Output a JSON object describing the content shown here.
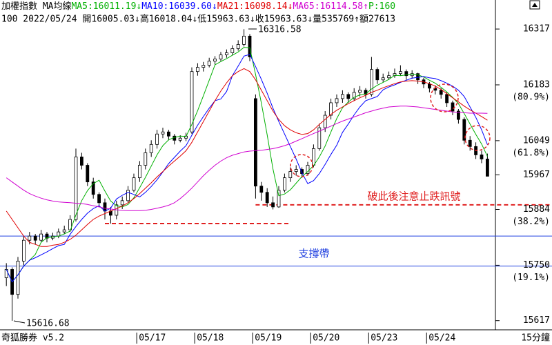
{
  "chart_data": {
    "type": "candlestick",
    "title": "加權指數 MA均線",
    "p_label": {
      "text": "P:160",
      "color": "#00b000"
    },
    "info": "100 2022/05/24 開16005.03↓高16018.04↓低15963.63↓收15963.63↓量535769↑額27613",
    "brand": "奇狐勝券 v5.2",
    "period": "15分鐘",
    "categories": [
      null,
      null,
      null,
      null,
      null,
      null,
      null,
      null,
      null,
      null,
      null,
      null,
      null,
      null,
      null,
      null,
      null,
      null,
      null,
      null,
      null,
      null,
      null,
      "05/17",
      null,
      null,
      null,
      null,
      null,
      null,
      null,
      null,
      null,
      "05/18",
      null,
      null,
      null,
      null,
      null,
      null,
      null,
      null,
      null,
      "05/19",
      null,
      null,
      null,
      null,
      null,
      null,
      null,
      null,
      null,
      "05/20",
      null,
      null,
      null,
      null,
      null,
      null,
      null,
      null,
      null,
      "05/23",
      null,
      null,
      null,
      null,
      null,
      null,
      null,
      null,
      null,
      "05/24",
      null,
      null,
      null,
      null,
      null,
      null,
      null,
      null,
      null,
      null
    ],
    "ohlc": [
      [
        15720,
        15755,
        15700,
        15740
      ],
      [
        15740,
        15745,
        15616.68,
        15680
      ],
      [
        15680,
        15770,
        15670,
        15760
      ],
      [
        15760,
        15820,
        15750,
        15810
      ],
      [
        15810,
        15830,
        15800,
        15820
      ],
      [
        15820,
        15825,
        15800,
        15810
      ],
      [
        15810,
        15835,
        15805,
        15825
      ],
      [
        15825,
        15830,
        15805,
        15815
      ],
      [
        15815,
        15828,
        15810,
        15820
      ],
      [
        15820,
        15838,
        15815,
        15830
      ],
      [
        15830,
        15845,
        15825,
        15835
      ],
      [
        15835,
        15870,
        15830,
        15860
      ],
      [
        15860,
        16030,
        15855,
        16010
      ],
      [
        16010,
        16020,
        15980,
        15990
      ],
      [
        15990,
        15995,
        15940,
        15950
      ],
      [
        15950,
        15960,
        15910,
        15920
      ],
      [
        15920,
        15925,
        15890,
        15900
      ],
      [
        15900,
        15910,
        15860,
        15880
      ],
      [
        15880,
        15890,
        15850,
        15870
      ],
      [
        15870,
        15905,
        15860,
        15895
      ],
      [
        15895,
        15915,
        15885,
        15905
      ],
      [
        15905,
        15940,
        15900,
        15930
      ],
      [
        15930,
        15970,
        15925,
        15960
      ],
      [
        15960,
        16000,
        15950,
        15990
      ],
      [
        15990,
        16030,
        15980,
        16020
      ],
      [
        16020,
        16050,
        16010,
        16040
      ],
      [
        16040,
        16075,
        16030,
        16065
      ],
      [
        16065,
        16080,
        16055,
        16070
      ],
      [
        16070,
        16075,
        16050,
        16060
      ],
      [
        16060,
        16065,
        16040,
        16050
      ],
      [
        16050,
        16062,
        16045,
        16055
      ],
      [
        16055,
        16068,
        16048,
        16060
      ],
      [
        16070,
        16225,
        16065,
        16215
      ],
      [
        16215,
        16235,
        16205,
        16225
      ],
      [
        16225,
        16238,
        16215,
        16230
      ],
      [
        16230,
        16248,
        16225,
        16240
      ],
      [
        16240,
        16252,
        16232,
        16245
      ],
      [
        16245,
        16262,
        16240,
        16255
      ],
      [
        16255,
        16268,
        16248,
        16260
      ],
      [
        16260,
        16278,
        16255,
        16270
      ],
      [
        16270,
        16290,
        16265,
        16280
      ],
      [
        16280,
        16316.58,
        16275,
        16300
      ],
      [
        16300,
        16305,
        16240,
        16250
      ],
      [
        16150,
        16160,
        15910,
        15940
      ],
      [
        15940,
        15950,
        15905,
        15925
      ],
      [
        15925,
        15935,
        15890,
        15900
      ],
      [
        15900,
        15915,
        15884,
        15890
      ],
      [
        15890,
        15940,
        15888,
        15930
      ],
      [
        15930,
        15970,
        15925,
        15960
      ],
      [
        15960,
        15985,
        15950,
        15975
      ],
      [
        15975,
        15990,
        15965,
        15980
      ],
      [
        15980,
        15985,
        15960,
        15970
      ],
      [
        15970,
        15998,
        15965,
        15990
      ],
      [
        15990,
        16040,
        15985,
        16030
      ],
      [
        16030,
        16090,
        16025,
        16080
      ],
      [
        16080,
        16120,
        16070,
        16110
      ],
      [
        16110,
        16150,
        16100,
        16140
      ],
      [
        16140,
        16160,
        16130,
        16150
      ],
      [
        16150,
        16170,
        16140,
        16160
      ],
      [
        16160,
        16165,
        16140,
        16150
      ],
      [
        16150,
        16175,
        16145,
        16165
      ],
      [
        16165,
        16180,
        16155,
        16170
      ],
      [
        16170,
        16175,
        16150,
        16160
      ],
      [
        16160,
        16250,
        16155,
        16220
      ],
      [
        16220,
        16225,
        16185,
        16195
      ],
      [
        16195,
        16210,
        16190,
        16200
      ],
      [
        16200,
        16215,
        16195,
        16205
      ],
      [
        16205,
        16222,
        16200,
        16210
      ],
      [
        16210,
        16230,
        16205,
        16215
      ],
      [
        16215,
        16220,
        16195,
        16205
      ],
      [
        16205,
        16218,
        16198,
        16210
      ],
      [
        16210,
        16212,
        16185,
        16195
      ],
      [
        16195,
        16200,
        16175,
        16185
      ],
      [
        16185,
        16190,
        16165,
        16175
      ],
      [
        16175,
        16182,
        16160,
        16170
      ],
      [
        16170,
        16175,
        16150,
        16160
      ],
      [
        16160,
        16165,
        16130,
        16140
      ],
      [
        16140,
        16145,
        16110,
        16120
      ],
      [
        16120,
        16125,
        16090,
        16100
      ],
      [
        16100,
        16105,
        16040,
        16050
      ],
      [
        16050,
        16060,
        16025,
        16035
      ],
      [
        16035,
        16045,
        16005,
        16015
      ],
      [
        16015,
        16025,
        15995,
        16005
      ],
      [
        16005.03,
        16018.04,
        15963.63,
        15963.63
      ]
    ],
    "series": [
      {
        "label": "MA5:16011.19↓",
        "color": "#00b000",
        "values": [
          15740,
          15710,
          15727,
          15748,
          15762,
          15776,
          15805,
          15816,
          15818,
          15820,
          15825,
          15832,
          15871,
          15905,
          15929,
          15946,
          15954,
          15928,
          15904,
          15893,
          15890,
          15896,
          15912,
          15936,
          15961,
          15988,
          16015,
          16037,
          16051,
          16057,
          16060,
          16059,
          16088,
          16121,
          16157,
          16194,
          16231,
          16239,
          16246,
          16254,
          16262,
          16273,
          16272,
          16208,
          16139,
          16063,
          15981,
          15917,
          15921,
          15931,
          15947,
          15963,
          15975,
          15989,
          16010,
          16036,
          16070,
          16102,
          16128,
          16142,
          16153,
          16159,
          16161,
          16173,
          16182,
          16189,
          16196,
          16206,
          16205,
          16207,
          16209,
          16207,
          16202,
          16194,
          16187,
          16177,
          16166,
          16153,
          16138,
          16114,
          16089,
          16064,
          16041,
          16011.19
        ]
      },
      {
        "label": "MA10:16039.60↓",
        "color": "#0000ff",
        "values": [
          15740,
          15710,
          15727,
          15748,
          15762,
          15768,
          15775,
          15782,
          15790,
          15797,
          15800,
          15824,
          15843,
          15860,
          15875,
          15886,
          15893,
          15880,
          15887,
          15909,
          15918,
          15925,
          15920,
          15914,
          15925,
          15939,
          15955,
          15974,
          15994,
          16009,
          16024,
          16037,
          16062,
          16086,
          16107,
          16127,
          16145,
          16149,
          16167,
          16205,
          16228,
          16252,
          16256,
          16227,
          16196,
          16163,
          16127,
          16095,
          16065,
          16035,
          16005,
          15972,
          15946,
          15953,
          15970,
          15992,
          16016,
          16038,
          16069,
          16089,
          16111,
          16130,
          16145,
          16150,
          16155,
          16171,
          16178,
          16183,
          16189,
          16194,
          16199,
          16201,
          16203,
          16200,
          16198,
          16193,
          16187,
          16180,
          16170,
          16155,
          16130,
          16105,
          16075,
          16039.6
        ]
      },
      {
        "label": "MA21:16098.14↓",
        "color": "#e00000",
        "values": [
          15880,
          15860,
          15840,
          15820,
          15805,
          15800,
          15795,
          15795,
          15798,
          15800,
          15805,
          15812,
          15822,
          15835,
          15848,
          15860,
          15868,
          15874,
          15880,
          15886,
          15892,
          15900,
          15910,
          15922,
          15935,
          15948,
          15962,
          15975,
          15988,
          16000,
          16012,
          16025,
          16045,
          16070,
          16095,
          16120,
          16145,
          16168,
          16188,
          16205,
          16215,
          16222,
          16215,
          16195,
          16170,
          16145,
          16120,
          16100,
          16085,
          16075,
          16068,
          16064,
          16066,
          16075,
          16088,
          16100,
          16112,
          16122,
          16130,
          16138,
          16145,
          16152,
          16158,
          16165,
          16170,
          16176,
          16181,
          16186,
          16190,
          16192,
          16193,
          16192,
          16190,
          16186,
          16180,
          16172,
          16162,
          16152,
          16142,
          16132,
          16123,
          16115,
          16107,
          16098.14
        ]
      },
      {
        "label": "MA65:16114.58↑",
        "color": "#d000d0",
        "values": [
          15960,
          15950,
          15940,
          15930,
          15922,
          15916,
          15911,
          15907,
          15904,
          15902,
          15901,
          15900,
          15899,
          15898,
          15896,
          15893,
          15890,
          15887,
          15885,
          15883,
          15882,
          15881,
          15881,
          15881,
          15882,
          15884,
          15887,
          15890,
          15894,
          15900,
          15910,
          15922,
          15935,
          15950,
          15965,
          15978,
          15990,
          16000,
          16008,
          16014,
          16018,
          16022,
          16024,
          16025,
          16026,
          16028,
          16030,
          16033,
          16037,
          16042,
          16048,
          16054,
          16060,
          16066,
          16072,
          16078,
          16084,
          16090,
          16096,
          16101,
          16106,
          16111,
          16116,
          16120,
          16124,
          16127,
          16130,
          16131,
          16132,
          16132,
          16131,
          16130,
          16128,
          16126,
          16124,
          16122,
          16120,
          16118,
          16117,
          16116,
          16115,
          16115,
          16115,
          16114.58
        ]
      }
    ],
    "ylim": [
      15595,
      16337
    ],
    "yticks": [
      16317,
      16183,
      16049,
      15967,
      15884,
      15750,
      15617
    ],
    "fib_labels": [
      {
        "value": 16183,
        "label": "(80.9%)"
      },
      {
        "value": 16049,
        "label": "(61.8%)"
      },
      {
        "value": 15884,
        "label": "(38.2%)"
      },
      {
        "value": 15750,
        "label": "(19.1%)"
      }
    ],
    "ref_lines": [
      {
        "value": 15820,
        "color": "#2040e0",
        "dashed": false
      },
      {
        "value": 15748,
        "color": "#2040e0",
        "dashed": false
      },
      {
        "value": 15850,
        "color": "#e02020",
        "dashed": true,
        "from": 17,
        "to": 49
      },
      {
        "value": 15895,
        "color": "#e02020",
        "dashed": true,
        "from": 43
      }
    ],
    "annotations": [
      {
        "text": "16316.58"
      },
      {
        "text": "15616.68"
      },
      {
        "text": "破此後注意止跌訊號",
        "color": "#e02020"
      },
      {
        "text": "支撐帶",
        "color": "#2040e0"
      }
    ]
  }
}
